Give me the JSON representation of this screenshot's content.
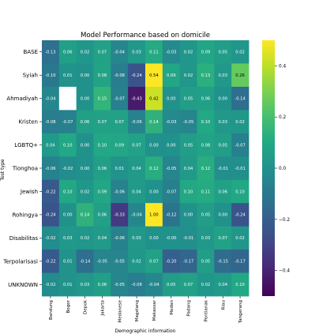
{
  "chart_data": {
    "type": "heatmap",
    "title": "Model Performance based on domicile",
    "xlabel": "Demographic information",
    "ylabel": "Test type",
    "x_categories": [
      "Bandung",
      "Bogor",
      "Depok",
      "Jakarta",
      "Medanese",
      "Magelang",
      "Makassar",
      "Medan",
      "Padang",
      "Pontianak",
      "Riau",
      "Tangerang"
    ],
    "y_categories": [
      "BASE",
      "Syiah",
      "Ahmadiyah",
      "Kristen",
      "LGBTQ+",
      "Tionghoa",
      "Jewish",
      "Rohingya",
      "Disabilitas",
      "Terpolarisasi",
      "UNKNOWN"
    ],
    "values": [
      [
        -0.13,
        0.06,
        0.02,
        0.07,
        -0.04,
        0.03,
        0.11,
        -0.03,
        0.02,
        0.09,
        0.05,
        0.02
      ],
      [
        -0.1,
        0.01,
        0.0,
        0.08,
        -0.08,
        -0.24,
        0.54,
        0.09,
        0.02,
        0.13,
        0.03,
        0.26
      ],
      [
        -0.04,
        null,
        0.0,
        0.15,
        -0.07,
        -0.43,
        0.42,
        0.0,
        0.05,
        0.06,
        0.0,
        -0.14
      ],
      [
        -0.08,
        -0.07,
        0.06,
        0.07,
        0.07,
        -0.06,
        0.14,
        -0.03,
        -0.05,
        0.1,
        0.03,
        0.02
      ],
      [
        0.04,
        0.1,
        0.0,
        0.1,
        0.09,
        0.07,
        0.0,
        0.0,
        0.05,
        0.08,
        0.05,
        -0.07
      ],
      [
        -0.06,
        -0.02,
        0.0,
        0.06,
        0.01,
        0.04,
        0.12,
        -0.05,
        0.04,
        0.12,
        -0.01,
        -0.01
      ],
      [
        -0.22,
        0.1,
        0.02,
        0.09,
        -0.06,
        0.04,
        0.0,
        -0.07,
        0.1,
        0.11,
        0.06,
        0.1
      ],
      [
        -0.24,
        0.0,
        0.14,
        0.06,
        -0.33,
        -0.04,
        1.0,
        -0.12,
        0.0,
        0.05,
        0.0,
        -0.24
      ],
      [
        -0.02,
        0.03,
        0.02,
        0.04,
        -0.06,
        0.03,
        0.0,
        -0.0,
        -0.01,
        0.03,
        0.07,
        0.02
      ],
      [
        -0.22,
        0.01,
        -0.14,
        -0.05,
        -0.05,
        0.02,
        0.07,
        -0.2,
        -0.17,
        0.05,
        -0.15,
        -0.17
      ],
      [
        -0.02,
        0.01,
        0.03,
        0.06,
        -0.05,
        -0.08,
        -0.04,
        0.05,
        0.07,
        0.02,
        0.04,
        0.1
      ]
    ],
    "colorbar": {
      "min": -0.5,
      "max": 0.5,
      "ticks": [
        0.4,
        0.2,
        0.0,
        -0.2,
        -0.4
      ],
      "colormap": "viridis"
    },
    "missing_cell_color": "#ffffff"
  }
}
